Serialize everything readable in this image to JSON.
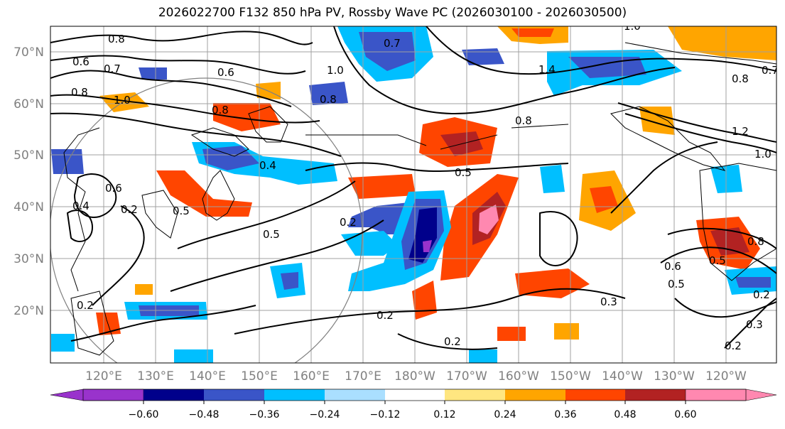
{
  "title": "2026022700 F132 850 hPa PV, Rossby Wave PC (2026030100 - 2026030500)",
  "map": {
    "lat_labels": [
      "70°N",
      "60°N",
      "50°N",
      "40°N",
      "30°N",
      "20°N"
    ],
    "lon_labels": [
      "120°E",
      "130°E",
      "140°E",
      "150°E",
      "160°E",
      "170°E",
      "180°W",
      "170°W",
      "160°W",
      "150°W",
      "140°W",
      "130°W",
      "120°W"
    ],
    "contour_labels": [
      "0.8",
      "0.6",
      "0.7",
      "0.6",
      "0.8",
      "1.0",
      "1.0",
      "0.8",
      "0.7",
      "1.4",
      "1.0",
      "0.8",
      "1.2",
      "1.0",
      "0.8",
      "0.5",
      "0.4",
      "0.8",
      "0.6",
      "0.4",
      "0.5",
      "0.5",
      "0.2",
      "0.5",
      "0.2",
      "0.2",
      "0.3",
      "0.2",
      "0.2",
      "0.5",
      "0.8",
      "0.6",
      "0.3",
      "0.2",
      "0.7",
      "0.2"
    ],
    "colors": {
      "land_outline": "#000000",
      "grid": "#a0a0a0",
      "great_circle": "#808080"
    }
  },
  "colorbar": {
    "colors": [
      "#9933cc",
      "#00008b",
      "#3a55c8",
      "#00bfff",
      "#aadfff",
      "#ffffff",
      "#ffe680",
      "#ffa500",
      "#ff4500",
      "#b22222",
      "#ff88b0"
    ],
    "tick_labels": [
      "−0.60",
      "−0.48",
      "−0.36",
      "−0.24",
      "−0.12",
      "0.12",
      "0.24",
      "0.36",
      "0.48",
      "0.60"
    ]
  }
}
